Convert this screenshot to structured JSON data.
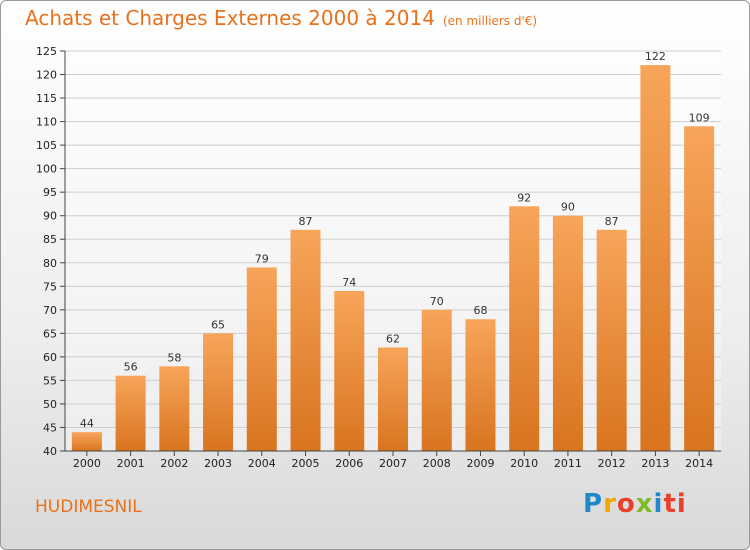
{
  "title": "Achats et Charges Externes 2000 à 2014",
  "subtitle": "(en milliers d'€)",
  "commune": "HUDIMESNIL",
  "brand": [
    "P",
    "r",
    "o",
    "x",
    "i",
    "ti"
  ],
  "colors": {
    "title": "#e8721c",
    "bar_top": "#f7a55a",
    "bar_bottom": "#d9741f",
    "grid": "#cfcfcf"
  },
  "chart_data": {
    "type": "bar",
    "title": "Achats et Charges Externes 2000 à 2014",
    "subtitle": "(en milliers d'€)",
    "xlabel": "",
    "ylabel": "",
    "ylim": [
      40,
      125
    ],
    "yticks": [
      40,
      45,
      50,
      55,
      60,
      65,
      70,
      75,
      80,
      85,
      90,
      95,
      100,
      105,
      110,
      115,
      120,
      125
    ],
    "grid": true,
    "categories": [
      "2000",
      "2001",
      "2002",
      "2003",
      "2004",
      "2005",
      "2006",
      "2007",
      "2008",
      "2009",
      "2010",
      "2011",
      "2012",
      "2013",
      "2014"
    ],
    "values": [
      44,
      56,
      58,
      65,
      79,
      87,
      74,
      62,
      70,
      68,
      92,
      90,
      87,
      122,
      109
    ]
  }
}
